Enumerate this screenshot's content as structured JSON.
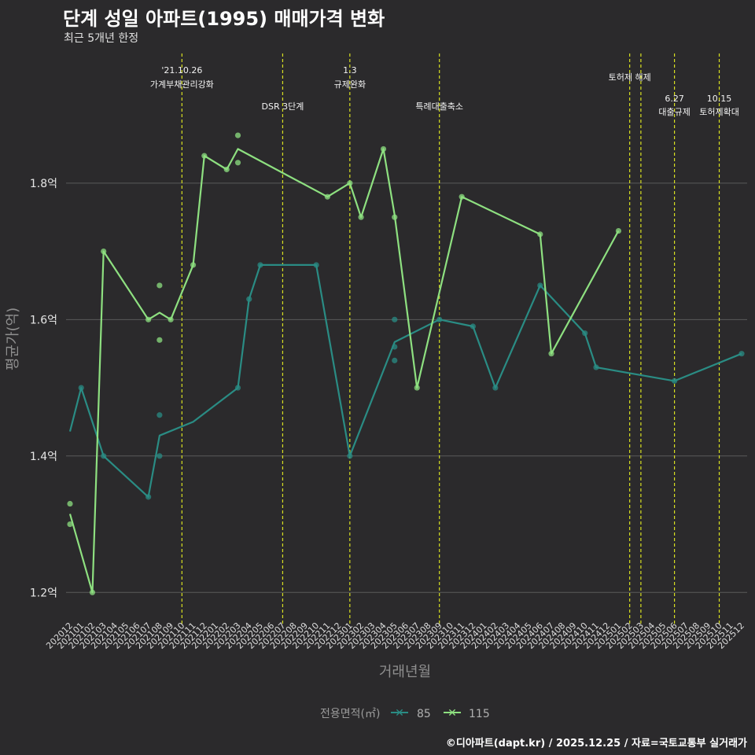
{
  "header": {
    "title": "단계 성일 아파트(1995) 매매가격 변화",
    "subtitle": "최근 5개년 한정"
  },
  "caption": "©디아파트(dapt.kr) / 2025.12.25 / 자료=국토교통부 실거래가",
  "colors": {
    "background": "#2b2a2c",
    "grid": "#5a5a5a",
    "series_85": "#2a8c84",
    "series_115": "#8ee080",
    "event_line": "#d8e021"
  },
  "chart_data": {
    "type": "line",
    "title": "단계 성일 아파트(1995) 매매가격 변화",
    "subtitle": "최근 5개년 한정",
    "xlabel": "거래년월",
    "ylabel": "평균가(억)",
    "ylim": [
      1.16,
      1.99
    ],
    "y_ticks": [
      1.2,
      1.4,
      1.6,
      1.8
    ],
    "y_tick_labels": [
      "1.2억",
      "1.4억",
      "1.6억",
      "1.8억"
    ],
    "categories": [
      "202012",
      "202101",
      "202102",
      "202103",
      "202104",
      "202105",
      "202106",
      "202107",
      "202108",
      "202109",
      "202110",
      "202111",
      "202112",
      "202201",
      "202202",
      "202203",
      "202204",
      "202205",
      "202206",
      "202207",
      "202208",
      "202209",
      "202210",
      "202211",
      "202212",
      "202301",
      "202302",
      "202303",
      "202304",
      "202305",
      "202306",
      "202307",
      "202308",
      "202309",
      "202310",
      "202311",
      "202312",
      "202401",
      "202402",
      "202403",
      "202404",
      "202405",
      "202406",
      "202407",
      "202408",
      "202409",
      "202410",
      "202411",
      "202412",
      "202501",
      "202502",
      "202503",
      "202504",
      "202505",
      "202506",
      "202507",
      "202508",
      "202509",
      "202510",
      "202511",
      "202512"
    ],
    "legend": {
      "title": "전용면적(㎡)",
      "position": "bottom",
      "items": [
        "85",
        "115"
      ]
    },
    "series": [
      {
        "name": "85",
        "color": "#2a8c84",
        "line": [
          {
            "x": "202012",
            "y": 1.436
          },
          {
            "x": "202101",
            "y": 1.5
          },
          {
            "x": "202103",
            "y": 1.4
          },
          {
            "x": "202107",
            "y": 1.34
          },
          {
            "x": "202108",
            "y": 1.43
          },
          {
            "x": "202111",
            "y": 1.45
          },
          {
            "x": "202203",
            "y": 1.5
          },
          {
            "x": "202204",
            "y": 1.63
          },
          {
            "x": "202205",
            "y": 1.68
          },
          {
            "x": "202210",
            "y": 1.68
          },
          {
            "x": "202301",
            "y": 1.4
          },
          {
            "x": "202305",
            "y": 1.567
          },
          {
            "x": "202309",
            "y": 1.6
          },
          {
            "x": "202312",
            "y": 1.59
          },
          {
            "x": "202402",
            "y": 1.5
          },
          {
            "x": "202406",
            "y": 1.65
          },
          {
            "x": "202410",
            "y": 1.58
          },
          {
            "x": "202411",
            "y": 1.53
          },
          {
            "x": "202506",
            "y": 1.51
          },
          {
            "x": "202512",
            "y": 1.55
          }
        ],
        "points": [
          {
            "x": "202101",
            "y": 1.5
          },
          {
            "x": "202103",
            "y": 1.4
          },
          {
            "x": "202107",
            "y": 1.34
          },
          {
            "x": "202108",
            "y": 1.46
          },
          {
            "x": "202108",
            "y": 1.4
          },
          {
            "x": "202203",
            "y": 1.5
          },
          {
            "x": "202204",
            "y": 1.63
          },
          {
            "x": "202205",
            "y": 1.68
          },
          {
            "x": "202210",
            "y": 1.68
          },
          {
            "x": "202301",
            "y": 1.4
          },
          {
            "x": "202305",
            "y": 1.6
          },
          {
            "x": "202305",
            "y": 1.56
          },
          {
            "x": "202305",
            "y": 1.54
          },
          {
            "x": "202309",
            "y": 1.6
          },
          {
            "x": "202312",
            "y": 1.59
          },
          {
            "x": "202402",
            "y": 1.5
          },
          {
            "x": "202406",
            "y": 1.65
          },
          {
            "x": "202410",
            "y": 1.58
          },
          {
            "x": "202411",
            "y": 1.53
          },
          {
            "x": "202506",
            "y": 1.51
          },
          {
            "x": "202512",
            "y": 1.55
          }
        ]
      },
      {
        "name": "115",
        "color": "#8ee080",
        "line": [
          {
            "x": "202012",
            "y": 1.315
          },
          {
            "x": "202102",
            "y": 1.2
          },
          {
            "x": "202103",
            "y": 1.7
          },
          {
            "x": "202107",
            "y": 1.6
          },
          {
            "x": "202108",
            "y": 1.61
          },
          {
            "x": "202109",
            "y": 1.6
          },
          {
            "x": "202111",
            "y": 1.68
          },
          {
            "x": "202112",
            "y": 1.84
          },
          {
            "x": "202202",
            "y": 1.82
          },
          {
            "x": "202203",
            "y": 1.85
          },
          {
            "x": "202211",
            "y": 1.78
          },
          {
            "x": "202301",
            "y": 1.8
          },
          {
            "x": "202302",
            "y": 1.75
          },
          {
            "x": "202304",
            "y": 1.85
          },
          {
            "x": "202305",
            "y": 1.753
          },
          {
            "x": "202307",
            "y": 1.5
          },
          {
            "x": "202311",
            "y": 1.78
          },
          {
            "x": "202406",
            "y": 1.725
          },
          {
            "x": "202407",
            "y": 1.55
          },
          {
            "x": "202501",
            "y": 1.73
          }
        ],
        "points": [
          {
            "x": "202012",
            "y": 1.33
          },
          {
            "x": "202012",
            "y": 1.3
          },
          {
            "x": "202102",
            "y": 1.2
          },
          {
            "x": "202103",
            "y": 1.7
          },
          {
            "x": "202107",
            "y": 1.6
          },
          {
            "x": "202108",
            "y": 1.65
          },
          {
            "x": "202108",
            "y": 1.57
          },
          {
            "x": "202109",
            "y": 1.6
          },
          {
            "x": "202111",
            "y": 1.68
          },
          {
            "x": "202112",
            "y": 1.84
          },
          {
            "x": "202202",
            "y": 1.82
          },
          {
            "x": "202203",
            "y": 1.87
          },
          {
            "x": "202203",
            "y": 1.83
          },
          {
            "x": "202211",
            "y": 1.78
          },
          {
            "x": "202301",
            "y": 1.8
          },
          {
            "x": "202302",
            "y": 1.75
          },
          {
            "x": "202304",
            "y": 1.85
          },
          {
            "x": "202305",
            "y": 1.75
          },
          {
            "x": "202307",
            "y": 1.5
          },
          {
            "x": "202311",
            "y": 1.78
          },
          {
            "x": "202406",
            "y": 1.725
          },
          {
            "x": "202407",
            "y": 1.55
          },
          {
            "x": "202501",
            "y": 1.73
          }
        ]
      }
    ],
    "events": [
      {
        "x": "202110",
        "lines": [
          "'21.10.26",
          "가계부채관리강화"
        ],
        "level": 1
      },
      {
        "x": "202207",
        "lines": [
          "DSR 3단계"
        ],
        "level": 3
      },
      {
        "x": "202301",
        "lines": [
          "1.3",
          "규제완화"
        ],
        "level": 1
      },
      {
        "x": "202309",
        "lines": [
          "특례대출축소"
        ],
        "level": 3
      },
      {
        "x": "202502",
        "lines": [
          "토허제 해제"
        ],
        "level": 2
      },
      {
        "x": "202503",
        "lines": [],
        "level": 0
      },
      {
        "x": "202506",
        "lines": [
          "6.27",
          "대출규제"
        ],
        "level": 4
      },
      {
        "x": "202510",
        "lines": [
          "10.15",
          "토허제확대"
        ],
        "level": 4
      }
    ]
  }
}
